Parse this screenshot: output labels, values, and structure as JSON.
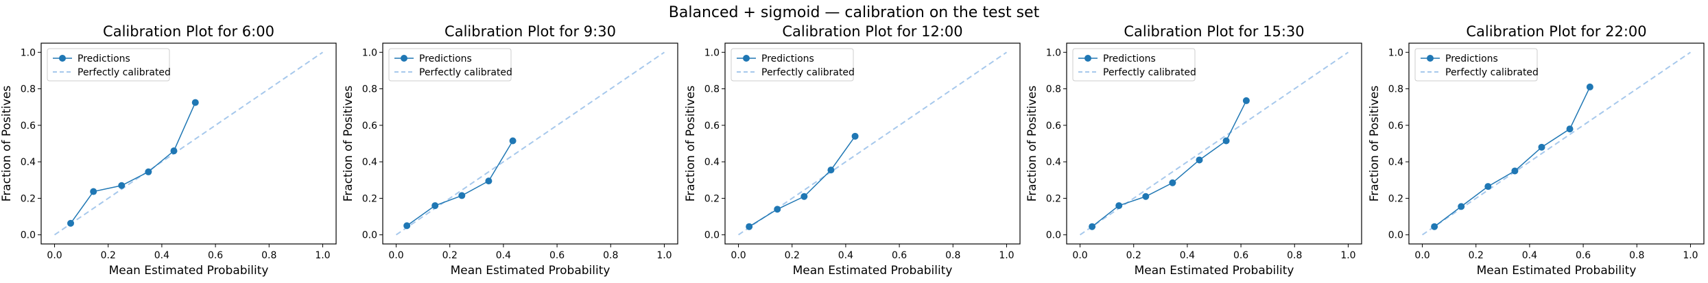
{
  "suptitle": "Balanced + sigmoid — calibration on the test set",
  "colors": {
    "predictions": "#1f77b4",
    "perfect": "#a6c8ec",
    "axes": "#000000"
  },
  "chart_data": [
    {
      "type": "line",
      "title": "Calibration Plot for 6:00",
      "xlabel": "Mean Estimated Probability",
      "ylabel": "Fraction of Positives",
      "xlim": [
        -0.05,
        1.05
      ],
      "ylim": [
        -0.05,
        1.05
      ],
      "xticks": [
        "0.0",
        "0.2",
        "0.4",
        "0.6",
        "0.8",
        "1.0"
      ],
      "yticks": [
        "0.0",
        "0.2",
        "0.4",
        "0.6",
        "0.8",
        "1.0"
      ],
      "legend_position": "top-left",
      "series": [
        {
          "name": "Predictions",
          "style": "line-marker",
          "x": [
            0.06,
            0.145,
            0.25,
            0.35,
            0.445,
            0.525
          ],
          "y": [
            0.063,
            0.237,
            0.27,
            0.345,
            0.46,
            0.725
          ]
        },
        {
          "name": "Perfectly calibrated",
          "style": "dashed",
          "x": [
            0,
            1
          ],
          "y": [
            0,
            1
          ]
        }
      ]
    },
    {
      "type": "line",
      "title": "Calibration Plot for 9:30",
      "xlabel": "Mean Estimated Probability",
      "ylabel": "Fraction of Positives",
      "xlim": [
        -0.05,
        1.05
      ],
      "ylim": [
        -0.05,
        1.05
      ],
      "xticks": [
        "0.0",
        "0.2",
        "0.4",
        "0.6",
        "0.8",
        "1.0"
      ],
      "yticks": [
        "0.0",
        "0.2",
        "0.4",
        "0.6",
        "0.8",
        "1.0"
      ],
      "legend_position": "top-left",
      "series": [
        {
          "name": "Predictions",
          "style": "line-marker",
          "x": [
            0.04,
            0.145,
            0.245,
            0.345,
            0.435
          ],
          "y": [
            0.05,
            0.16,
            0.215,
            0.295,
            0.515
          ]
        },
        {
          "name": "Perfectly calibrated",
          "style": "dashed",
          "x": [
            0,
            1
          ],
          "y": [
            0,
            1
          ]
        }
      ]
    },
    {
      "type": "line",
      "title": "Calibration Plot for 12:00",
      "xlabel": "Mean Estimated Probability",
      "ylabel": "Fraction of Positives",
      "xlim": [
        -0.05,
        1.05
      ],
      "ylim": [
        -0.05,
        1.05
      ],
      "xticks": [
        "0.0",
        "0.2",
        "0.4",
        "0.6",
        "0.8",
        "1.0"
      ],
      "yticks": [
        "0.0",
        "0.2",
        "0.4",
        "0.6",
        "0.8",
        "1.0"
      ],
      "legend_position": "top-left",
      "series": [
        {
          "name": "Predictions",
          "style": "line-marker",
          "x": [
            0.04,
            0.145,
            0.245,
            0.345,
            0.435
          ],
          "y": [
            0.045,
            0.14,
            0.21,
            0.355,
            0.54
          ]
        },
        {
          "name": "Perfectly calibrated",
          "style": "dashed",
          "x": [
            0,
            1
          ],
          "y": [
            0,
            1
          ]
        }
      ]
    },
    {
      "type": "line",
      "title": "Calibration Plot for 15:30",
      "xlabel": "Mean Estimated Probability",
      "ylabel": "Fraction of Positives",
      "xlim": [
        -0.05,
        1.05
      ],
      "ylim": [
        -0.05,
        1.05
      ],
      "xticks": [
        "0.0",
        "0.2",
        "0.4",
        "0.6",
        "0.8",
        "1.0"
      ],
      "yticks": [
        "0.0",
        "0.2",
        "0.4",
        "0.6",
        "0.8",
        "1.0"
      ],
      "legend_position": "top-left",
      "series": [
        {
          "name": "Predictions",
          "style": "line-marker",
          "x": [
            0.045,
            0.145,
            0.245,
            0.345,
            0.445,
            0.545,
            0.62
          ],
          "y": [
            0.045,
            0.16,
            0.21,
            0.285,
            0.41,
            0.515,
            0.735
          ]
        },
        {
          "name": "Perfectly calibrated",
          "style": "dashed",
          "x": [
            0,
            1
          ],
          "y": [
            0,
            1
          ]
        }
      ]
    },
    {
      "type": "line",
      "title": "Calibration Plot for 22:00",
      "xlabel": "Mean Estimated Probability",
      "ylabel": "Fraction of Positives",
      "xlim": [
        -0.05,
        1.05
      ],
      "ylim": [
        -0.05,
        1.05
      ],
      "xticks": [
        "0.0",
        "0.2",
        "0.4",
        "0.6",
        "0.8",
        "1.0"
      ],
      "yticks": [
        "0.0",
        "0.2",
        "0.4",
        "0.6",
        "0.8",
        "1.0"
      ],
      "legend_position": "top-left",
      "series": [
        {
          "name": "Predictions",
          "style": "line-marker",
          "x": [
            0.045,
            0.145,
            0.245,
            0.345,
            0.445,
            0.55,
            0.625
          ],
          "y": [
            0.045,
            0.155,
            0.265,
            0.35,
            0.48,
            0.58,
            0.81
          ]
        },
        {
          "name": "Perfectly calibrated",
          "style": "dashed",
          "x": [
            0,
            1
          ],
          "y": [
            0,
            1
          ]
        }
      ]
    }
  ]
}
